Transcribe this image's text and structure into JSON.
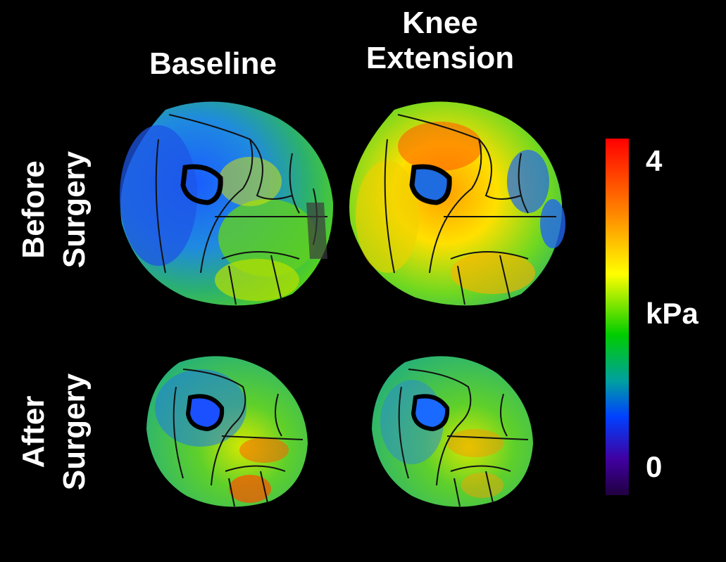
{
  "columns": {
    "baseline": "Baseline",
    "knee_line1": "Knee",
    "knee_line2": "Extension"
  },
  "rows": {
    "before_line1": "Before",
    "before_line2": "Surgery",
    "after_line1": "After",
    "after_line2": "Surgery"
  },
  "colorbar": {
    "max_label": "4",
    "unit_label": "kPa",
    "min_label": "0",
    "colors": [
      "#ff0000",
      "#ff8000",
      "#ffff00",
      "#00cc00",
      "#00a0a0",
      "#0040ff",
      "#4000a0",
      "#200040"
    ]
  }
}
